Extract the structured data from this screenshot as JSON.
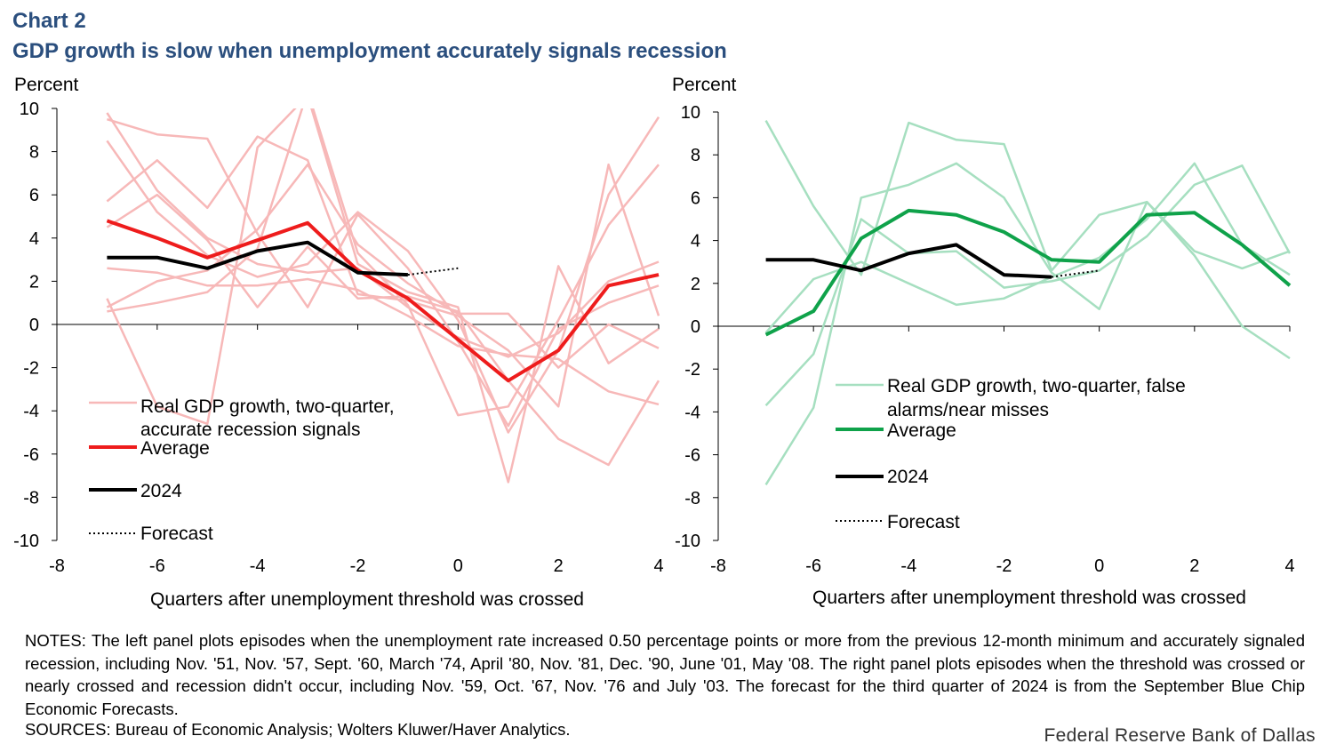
{
  "header": {
    "label": "Chart 2",
    "title": "GDP growth is slow when unemployment accurately signals recession"
  },
  "chart_data": [
    {
      "type": "line",
      "panel": "left",
      "ylabel": "Percent",
      "xlabel": "Quarters after unemployment threshold was crossed",
      "xlim": [
        -8,
        4
      ],
      "ylim": [
        -10,
        10
      ],
      "xticks": [
        -8,
        -6,
        -4,
        -2,
        0,
        2,
        4
      ],
      "yticks": [
        10,
        8,
        6,
        4,
        2,
        0,
        -2,
        -4,
        -6,
        -8,
        -10
      ],
      "colors": {
        "episodes": "#f7b8b8",
        "average": "#ee1c1c",
        "y2024": "#000000",
        "forecast": "#000000"
      },
      "legend": {
        "episodes_label": "Real GDP growth, two-quarter, accurate recession signals",
        "episodes_line1": "Real GDP growth, two-quarter,",
        "episodes_line2": "accurate recession signals",
        "average_label": "Average",
        "y2024_label": "2024",
        "forecast_label": "Forecast"
      },
      "x": [
        -7,
        -6,
        -5,
        -4,
        -3,
        -2,
        -1,
        0,
        1,
        2,
        3,
        4
      ],
      "episodes": [
        {
          "name": "Nov. '51",
          "values": [
            9.8,
            6.2,
            4.0,
            2.8,
            2.4,
            2.6,
            0.8,
            -0.6,
            -1.5,
            -0.4,
            2.0,
            2.9
          ]
        },
        {
          "name": "Nov. '57",
          "values": [
            8.5,
            5.2,
            3.2,
            2.2,
            2.8,
            5.2,
            3.4,
            0.2,
            -5.0,
            -1.2,
            6.0,
            9.6
          ]
        },
        {
          "name": "Sept. '60",
          "values": [
            5.7,
            7.6,
            5.4,
            8.7,
            7.6,
            1.4,
            1.1,
            0.4,
            -1.2,
            -3.8,
            7.4,
            0.4
          ]
        },
        {
          "name": "March '74",
          "values": [
            0.6,
            1.0,
            1.5,
            3.5,
            10.8,
            3.3,
            0.9,
            -4.2,
            -3.8,
            0.2,
            4.6,
            7.4
          ]
        },
        {
          "name": "April '80",
          "values": [
            1.2,
            -3.8,
            -4.6,
            8.2,
            10.6,
            2.8,
            1.5,
            0.8,
            -7.3,
            2.7,
            -1.8,
            -0.2
          ]
        },
        {
          "name": "Nov. '81",
          "values": [
            4.5,
            6.0,
            3.9,
            0.8,
            3.6,
            1.2,
            1.3,
            0.6,
            -2.6,
            -5.3,
            -6.5,
            -2.6
          ]
        },
        {
          "name": "Dec. '90",
          "values": [
            9.5,
            8.8,
            8.6,
            4.2,
            0.8,
            5.1,
            2.6,
            -0.8,
            -4.7,
            -0.2,
            1.0,
            1.8
          ]
        },
        {
          "name": "June '01",
          "values": [
            2.6,
            2.4,
            1.8,
            1.8,
            2.1,
            1.6,
            0.4,
            -1.0,
            -1.4,
            -1.6,
            -3.1,
            -3.7
          ]
        },
        {
          "name": "May '08",
          "values": [
            0.8,
            2.0,
            2.5,
            4.4,
            7.4,
            3.7,
            1.9,
            0.5,
            0.5,
            -2.0,
            0.0,
            -1.1
          ]
        }
      ],
      "average": [
        4.8,
        4.0,
        3.1,
        3.9,
        4.7,
        2.5,
        1.2,
        -0.7,
        -2.6,
        -1.2,
        1.8,
        2.3
      ],
      "y2024": {
        "x": [
          -7,
          -6,
          -5,
          -4,
          -3,
          -2,
          -1
        ],
        "values": [
          3.1,
          3.1,
          2.6,
          3.4,
          3.8,
          2.4,
          2.3
        ]
      },
      "forecast": {
        "x": [
          -1,
          0
        ],
        "values": [
          2.3,
          2.6
        ]
      }
    },
    {
      "type": "line",
      "panel": "right",
      "ylabel": "Percent",
      "xlabel": "Quarters after unemployment threshold was crossed",
      "xlim": [
        -8,
        4
      ],
      "ylim": [
        -10,
        10
      ],
      "xticks": [
        -8,
        -6,
        -4,
        -2,
        0,
        2,
        4
      ],
      "yticks": [
        10,
        8,
        6,
        4,
        2,
        0,
        -2,
        -4,
        -6,
        -8,
        -10
      ],
      "colors": {
        "episodes": "#a6dfc0",
        "average": "#0fa24a",
        "y2024": "#000000",
        "forecast": "#000000"
      },
      "legend": {
        "episodes_label": "Real GDP growth, two-quarter, false alarms/near misses",
        "episodes_line1": "Real GDP growth, two-quarter, false",
        "episodes_line2": "alarms/near misses",
        "average_label": "Average",
        "y2024_label": "2024",
        "forecast_label": "Forecast"
      },
      "x": [
        -7,
        -6,
        -5,
        -4,
        -3,
        -2,
        -1,
        0,
        1,
        2,
        3,
        4
      ],
      "episodes": [
        {
          "name": "Nov. '59",
          "values": [
            9.6,
            5.6,
            2.4,
            9.5,
            8.7,
            8.5,
            2.6,
            5.2,
            5.8,
            3.3,
            0.0,
            -1.5
          ]
        },
        {
          "name": "Oct. '67",
          "values": [
            -0.3,
            2.2,
            3.0,
            2.0,
            1.0,
            1.3,
            2.3,
            3.2,
            5.0,
            7.6,
            3.8,
            2.4
          ]
        },
        {
          "name": "Nov. '76",
          "values": [
            -7.4,
            -3.8,
            6.0,
            6.6,
            7.6,
            6.0,
            2.5,
            0.8,
            5.8,
            3.5,
            2.7,
            3.5
          ]
        },
        {
          "name": "July '03",
          "values": [
            -3.7,
            -1.3,
            5.0,
            3.4,
            3.5,
            1.8,
            2.1,
            2.6,
            4.2,
            6.6,
            7.5,
            3.4
          ]
        }
      ],
      "average": [
        -0.4,
        0.7,
        4.1,
        5.4,
        5.2,
        4.4,
        3.1,
        3.0,
        5.2,
        5.3,
        3.8,
        1.9
      ],
      "y2024": {
        "x": [
          -7,
          -6,
          -5,
          -4,
          -3,
          -2,
          -1
        ],
        "values": [
          3.1,
          3.1,
          2.6,
          3.4,
          3.8,
          2.4,
          2.3
        ]
      },
      "forecast": {
        "x": [
          -1,
          0
        ],
        "values": [
          2.3,
          2.6
        ]
      }
    }
  ],
  "notes": {
    "notes_text": "NOTES: The left panel plots episodes when the unemployment rate increased 0.50 percentage points or more from the previous 12-month minimum and accurately signaled recession, including Nov. '51, Nov. '57, Sept. '60, March '74, April '80, Nov. '81, Dec. '90, June '01, May '08. The right panel plots episodes when the threshold was crossed or nearly crossed and recession didn't occur, including Nov. '59, Oct. '67, Nov. '76 and July '03. The forecast for the third quarter of 2024 is from the September Blue Chip Economic Forecasts.",
    "sources_text": "SOURCES: Bureau of Economic Analysis; Wolters Kluwer/Haver Analytics.",
    "credit": "Federal Reserve Bank of Dallas"
  }
}
